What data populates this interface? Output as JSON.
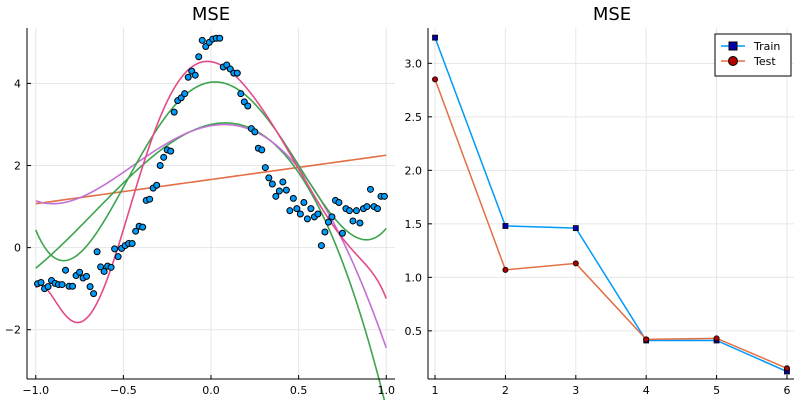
{
  "chart_data": [
    {
      "type": "scatter",
      "title": "MSE",
      "xlim": [
        -1.05,
        1.05
      ],
      "ylim": [
        -3.2,
        5.35
      ],
      "x_ticks": [
        -1.0,
        -0.5,
        0.0,
        0.5,
        1.0
      ],
      "x_tick_labels": [
        "−1.0",
        "−0.5",
        "0.0",
        "0.5",
        "1.0"
      ],
      "y_ticks": [
        -2,
        0,
        2,
        4
      ],
      "y_tick_labels": [
        "−2",
        "0",
        "2",
        "4"
      ],
      "grid": true,
      "legend": "none",
      "point_color": "#009AFA",
      "points": [
        [
          -0.99,
          -0.88
        ],
        [
          -0.97,
          -0.85
        ],
        [
          -0.95,
          -1.0
        ],
        [
          -0.93,
          -0.95
        ],
        [
          -0.91,
          -0.8
        ],
        [
          -0.89,
          -0.87
        ],
        [
          -0.87,
          -0.9
        ],
        [
          -0.85,
          -0.9
        ],
        [
          -0.83,
          -0.55
        ],
        [
          -0.81,
          -0.94
        ],
        [
          -0.79,
          -0.94
        ],
        [
          -0.77,
          -0.68
        ],
        [
          -0.75,
          -0.6
        ],
        [
          -0.73,
          -0.74
        ],
        [
          -0.71,
          -0.7
        ],
        [
          -0.69,
          -0.95
        ],
        [
          -0.67,
          -1.12
        ],
        [
          -0.65,
          -0.1
        ],
        [
          -0.63,
          -0.47
        ],
        [
          -0.61,
          -0.58
        ],
        [
          -0.59,
          -0.45
        ],
        [
          -0.57,
          -0.48
        ],
        [
          -0.55,
          -0.03
        ],
        [
          -0.53,
          -0.22
        ],
        [
          -0.51,
          -0.02
        ],
        [
          -0.49,
          0.05
        ],
        [
          -0.47,
          0.1
        ],
        [
          -0.45,
          0.1
        ],
        [
          -0.43,
          0.4
        ],
        [
          -0.41,
          0.52
        ],
        [
          -0.39,
          0.5
        ],
        [
          -0.37,
          1.15
        ],
        [
          -0.35,
          1.18
        ],
        [
          -0.33,
          1.45
        ],
        [
          -0.31,
          1.52
        ],
        [
          -0.29,
          2.0
        ],
        [
          -0.27,
          2.2
        ],
        [
          -0.25,
          2.38
        ],
        [
          -0.23,
          2.35
        ],
        [
          -0.21,
          3.3
        ],
        [
          -0.19,
          3.58
        ],
        [
          -0.17,
          3.65
        ],
        [
          -0.15,
          3.75
        ],
        [
          -0.13,
          4.15
        ],
        [
          -0.11,
          4.3
        ],
        [
          -0.09,
          4.2
        ],
        [
          -0.07,
          4.65
        ],
        [
          -0.05,
          5.05
        ],
        [
          -0.03,
          4.9
        ],
        [
          -0.01,
          5.0
        ],
        [
          0.01,
          5.08
        ],
        [
          0.03,
          5.1
        ],
        [
          0.05,
          5.1
        ],
        [
          0.07,
          4.4
        ],
        [
          0.09,
          4.45
        ],
        [
          0.11,
          4.35
        ],
        [
          0.13,
          4.25
        ],
        [
          0.15,
          4.25
        ],
        [
          0.17,
          3.75
        ],
        [
          0.19,
          3.55
        ],
        [
          0.21,
          3.45
        ],
        [
          0.23,
          2.9
        ],
        [
          0.25,
          2.82
        ],
        [
          0.27,
          2.42
        ],
        [
          0.29,
          2.38
        ],
        [
          0.31,
          1.95
        ],
        [
          0.33,
          1.7
        ],
        [
          0.35,
          1.55
        ],
        [
          0.37,
          1.25
        ],
        [
          0.39,
          1.38
        ],
        [
          0.41,
          1.6
        ],
        [
          0.43,
          1.4
        ],
        [
          0.45,
          0.9
        ],
        [
          0.47,
          1.2
        ],
        [
          0.49,
          0.95
        ],
        [
          0.51,
          0.82
        ],
        [
          0.53,
          1.1
        ],
        [
          0.55,
          0.7
        ],
        [
          0.57,
          0.95
        ],
        [
          0.59,
          0.75
        ],
        [
          0.61,
          0.82
        ],
        [
          0.63,
          0.05
        ],
        [
          0.65,
          0.38
        ],
        [
          0.67,
          0.62
        ],
        [
          0.69,
          0.75
        ],
        [
          0.71,
          1.15
        ],
        [
          0.73,
          1.1
        ],
        [
          0.75,
          0.35
        ],
        [
          0.77,
          0.95
        ],
        [
          0.79,
          0.9
        ],
        [
          0.81,
          0.65
        ],
        [
          0.83,
          0.9
        ],
        [
          0.85,
          0.6
        ],
        [
          0.87,
          0.95
        ],
        [
          0.89,
          1.0
        ],
        [
          0.91,
          1.42
        ],
        [
          0.93,
          1.0
        ],
        [
          0.95,
          0.95
        ],
        [
          0.97,
          1.25
        ],
        [
          0.99,
          1.25
        ]
      ],
      "curves": [
        {
          "degree": 1,
          "color": "#E26F46",
          "coef": [
            1.66,
            0.59
          ]
        },
        {
          "degree": 3,
          "color": "#3DA44D",
          "coef": [
            3.0,
            0.9,
            -5.2,
            -2.6
          ]
        },
        {
          "degree": 4,
          "color": "#C271D2",
          "coef": [
            2.97,
            0.73,
            -4.58,
            -2.52,
            0.96
          ]
        },
        {
          "degree": 5,
          "color": "#3DA44D",
          "coef": [
            4.03,
            0.51,
            -11.03,
            0.29,
            7.45,
            -0.78
          ]
        },
        {
          "degree": 8,
          "color": "#E44A8A",
          "coef": [
            4.53,
            -0.65,
            -15.14,
            14.13,
            2.28,
            -25.34,
            22.45,
            11.73,
            -15.23
          ]
        }
      ]
    },
    {
      "type": "line",
      "title": "MSE",
      "xlim": [
        0.9,
        6.1
      ],
      "ylim": [
        0.05,
        3.33
      ],
      "x_ticks": [
        1,
        2,
        3,
        4,
        5,
        6
      ],
      "x_tick_labels": [
        "1",
        "2",
        "3",
        "4",
        "5",
        "6"
      ],
      "y_ticks": [
        0.5,
        1.0,
        1.5,
        2.0,
        2.5,
        3.0
      ],
      "y_tick_labels": [
        "0.5",
        "1.0",
        "1.5",
        "2.0",
        "2.5",
        "3.0"
      ],
      "grid": true,
      "legend": "top-right",
      "x": [
        1,
        2,
        3,
        4,
        5,
        6
      ],
      "series": [
        {
          "name": "Train",
          "marker": "square",
          "color": "#009AFA",
          "marker_fill": "#0000AA",
          "values": [
            3.24,
            1.48,
            1.46,
            0.41,
            0.41,
            0.12
          ]
        },
        {
          "name": "Test",
          "marker": "circle",
          "color": "#E26F46",
          "marker_fill": "#B00000",
          "values": [
            2.85,
            1.07,
            1.13,
            0.42,
            0.43,
            0.15
          ]
        }
      ]
    }
  ]
}
